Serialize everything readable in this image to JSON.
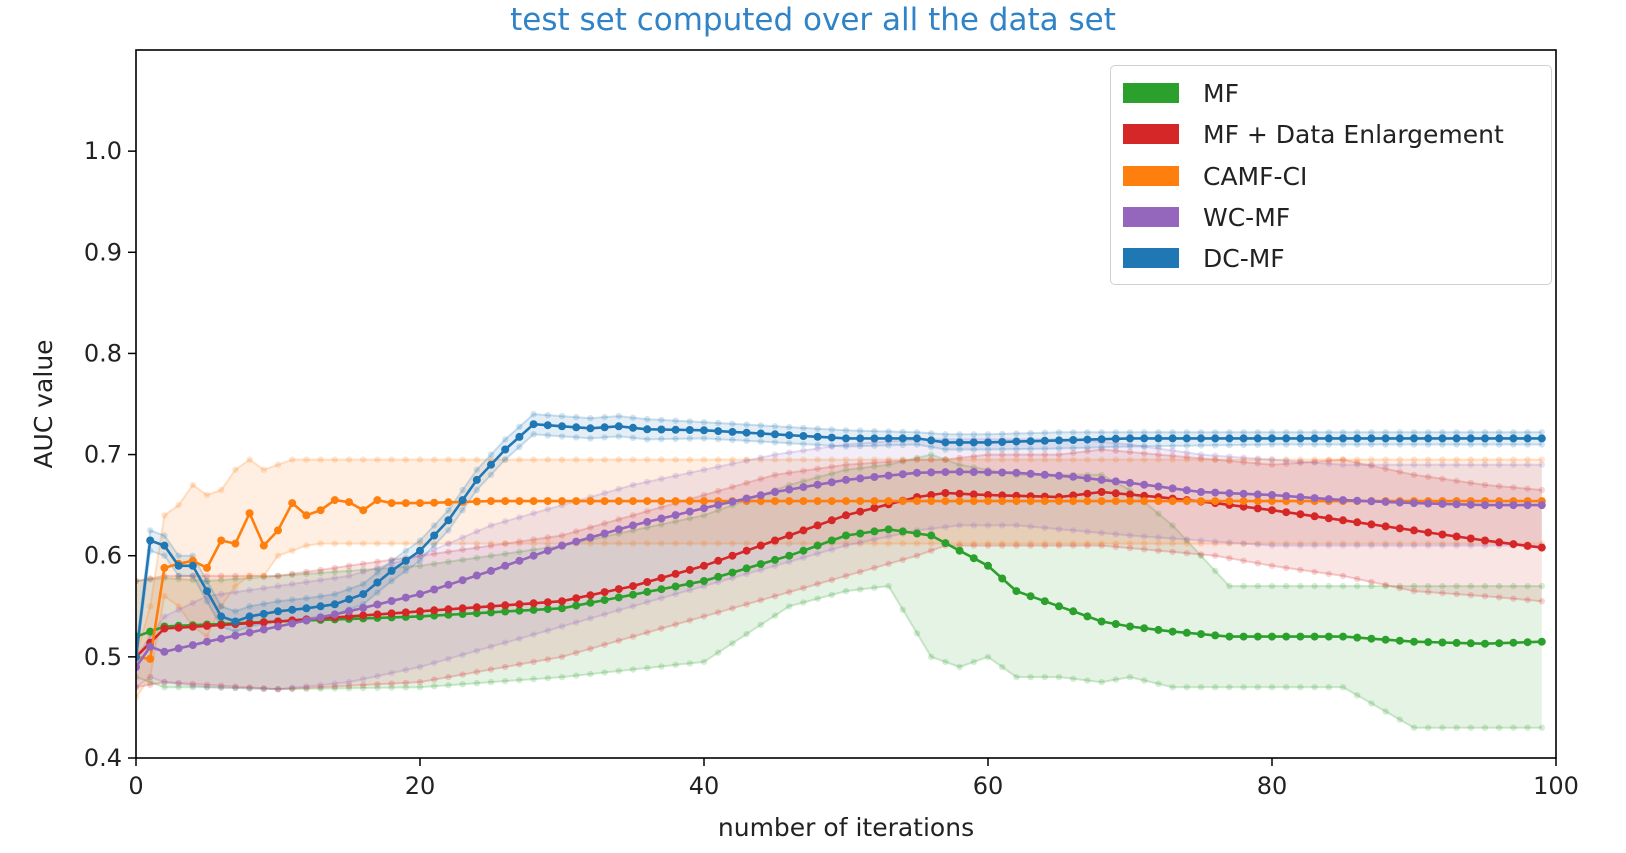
{
  "chart_data": {
    "type": "line",
    "title": "test set computed over all the data set",
    "xlabel": "number of iterations",
    "ylabel": "AUC value",
    "xlim": [
      0,
      100
    ],
    "ylim": [
      0.4,
      1.1
    ],
    "xticks": [
      0,
      20,
      40,
      60,
      80,
      100
    ],
    "yticks": [
      0.4,
      0.5,
      0.6,
      0.7,
      0.8,
      0.9,
      1.0
    ],
    "xtick_labels": [
      "0",
      "20",
      "40",
      "60",
      "80",
      "100"
    ],
    "ytick_labels": [
      "0.4",
      "0.5",
      "0.6",
      "0.7",
      "0.8",
      "0.9",
      "1.0"
    ],
    "legend_position": "top-right",
    "series": [
      {
        "name": "MF",
        "color": "#2ca02c",
        "x_keys": [
          0,
          2,
          5,
          10,
          20,
          30,
          40,
          46,
          50,
          53,
          56,
          58,
          60,
          62,
          65,
          68,
          70,
          73,
          77,
          80,
          85,
          90,
          95,
          99
        ],
        "mean": [
          0.52,
          0.53,
          0.532,
          0.535,
          0.54,
          0.548,
          0.575,
          0.6,
          0.62,
          0.626,
          0.62,
          0.605,
          0.59,
          0.565,
          0.55,
          0.535,
          0.53,
          0.525,
          0.52,
          0.52,
          0.52,
          0.515,
          0.513,
          0.515
        ],
        "upper": [
          0.575,
          0.578,
          0.575,
          0.58,
          0.59,
          0.61,
          0.64,
          0.67,
          0.685,
          0.69,
          0.7,
          0.69,
          0.685,
          0.68,
          0.68,
          0.68,
          0.665,
          0.63,
          0.57,
          0.57,
          0.57,
          0.57,
          0.57,
          0.57
        ],
        "lower": [
          0.48,
          0.47,
          0.47,
          0.468,
          0.47,
          0.48,
          0.495,
          0.55,
          0.565,
          0.57,
          0.5,
          0.49,
          0.5,
          0.48,
          0.48,
          0.475,
          0.48,
          0.47,
          0.47,
          0.47,
          0.47,
          0.43,
          0.43,
          0.43
        ]
      },
      {
        "name": "MF + Data Enlargement",
        "color": "#d62728",
        "x_keys": [
          0,
          2,
          10,
          20,
          30,
          35,
          40,
          45,
          50,
          55,
          57,
          60,
          65,
          68,
          72,
          76,
          80,
          85,
          90,
          95,
          99
        ],
        "mean": [
          0.5,
          0.528,
          0.535,
          0.545,
          0.555,
          0.57,
          0.59,
          0.615,
          0.64,
          0.658,
          0.662,
          0.66,
          0.658,
          0.663,
          0.658,
          0.652,
          0.645,
          0.635,
          0.625,
          0.615,
          0.608
        ],
        "upper": [
          0.575,
          0.58,
          0.58,
          0.6,
          0.62,
          0.64,
          0.66,
          0.68,
          0.69,
          0.695,
          0.695,
          0.7,
          0.7,
          0.705,
          0.7,
          0.695,
          0.69,
          0.695,
          0.68,
          0.67,
          0.665
        ],
        "lower": [
          0.47,
          0.475,
          0.468,
          0.475,
          0.5,
          0.52,
          0.54,
          0.56,
          0.58,
          0.6,
          0.61,
          0.61,
          0.61,
          0.61,
          0.605,
          0.6,
          0.59,
          0.58,
          0.565,
          0.56,
          0.555
        ]
      },
      {
        "name": "CAMF-CI",
        "color": "#ff7f0e",
        "x_keys": [
          0,
          1,
          2,
          3,
          4,
          5,
          6,
          7,
          8,
          9,
          10,
          11,
          12,
          13,
          14,
          15,
          16,
          17,
          18,
          20,
          25,
          30,
          40,
          50,
          60,
          70,
          80,
          90,
          99
        ],
        "mean": [
          0.5,
          0.498,
          0.588,
          0.592,
          0.595,
          0.588,
          0.615,
          0.612,
          0.642,
          0.61,
          0.625,
          0.652,
          0.64,
          0.645,
          0.655,
          0.653,
          0.645,
          0.655,
          0.652,
          0.652,
          0.654,
          0.654,
          0.654,
          0.654,
          0.654,
          0.654,
          0.654,
          0.654,
          0.654
        ],
        "upper": [
          0.5,
          0.55,
          0.64,
          0.65,
          0.67,
          0.66,
          0.665,
          0.685,
          0.695,
          0.685,
          0.69,
          0.695,
          0.695,
          0.695,
          0.695,
          0.695,
          0.695,
          0.695,
          0.695,
          0.695,
          0.695,
          0.695,
          0.695,
          0.695,
          0.695,
          0.695,
          0.695,
          0.695,
          0.695
        ],
        "lower": [
          0.46,
          0.48,
          0.56,
          0.55,
          0.53,
          0.52,
          0.55,
          0.57,
          0.58,
          0.58,
          0.6,
          0.605,
          0.61,
          0.612,
          0.612,
          0.612,
          0.612,
          0.612,
          0.612,
          0.612,
          0.612,
          0.612,
          0.612,
          0.612,
          0.612,
          0.612,
          0.612,
          0.612,
          0.612
        ]
      },
      {
        "name": "WC-MF",
        "color": "#9467bd",
        "x_keys": [
          0,
          1,
          2,
          5,
          10,
          15,
          20,
          25,
          30,
          35,
          40,
          45,
          50,
          55,
          58,
          62,
          66,
          70,
          75,
          80,
          85,
          90,
          95,
          99
        ],
        "mean": [
          0.49,
          0.51,
          0.505,
          0.515,
          0.53,
          0.545,
          0.562,
          0.585,
          0.61,
          0.63,
          0.647,
          0.663,
          0.675,
          0.682,
          0.683,
          0.682,
          0.678,
          0.672,
          0.663,
          0.66,
          0.655,
          0.652,
          0.65,
          0.65
        ],
        "upper": [
          0.5,
          0.52,
          0.54,
          0.56,
          0.57,
          0.58,
          0.6,
          0.63,
          0.65,
          0.67,
          0.685,
          0.7,
          0.71,
          0.715,
          0.715,
          0.715,
          0.715,
          0.71,
          0.7,
          0.695,
          0.69,
          0.69,
          0.69,
          0.69
        ],
        "lower": [
          0.47,
          0.48,
          0.475,
          0.47,
          0.468,
          0.475,
          0.49,
          0.51,
          0.53,
          0.55,
          0.57,
          0.59,
          0.61,
          0.625,
          0.63,
          0.63,
          0.625,
          0.62,
          0.615,
          0.61,
          0.61,
          0.61,
          0.61,
          0.61
        ]
      },
      {
        "name": "DC-MF",
        "color": "#1f77b4",
        "x_keys": [
          0,
          1,
          2,
          3,
          4,
          5,
          6,
          7,
          8,
          10,
          12,
          14,
          16,
          18,
          20,
          22,
          24,
          26,
          28,
          30,
          32,
          34,
          36,
          40,
          45,
          50,
          55,
          57,
          60,
          65,
          70,
          80,
          90,
          99
        ],
        "mean": [
          0.5,
          0.615,
          0.61,
          0.59,
          0.59,
          0.565,
          0.54,
          0.535,
          0.54,
          0.545,
          0.548,
          0.552,
          0.562,
          0.585,
          0.605,
          0.635,
          0.675,
          0.705,
          0.73,
          0.728,
          0.726,
          0.728,
          0.725,
          0.724,
          0.72,
          0.716,
          0.716,
          0.712,
          0.712,
          0.714,
          0.716,
          0.716,
          0.716,
          0.716
        ],
        "upper": [
          0.505,
          0.625,
          0.62,
          0.6,
          0.6,
          0.575,
          0.55,
          0.545,
          0.55,
          0.555,
          0.558,
          0.562,
          0.572,
          0.595,
          0.615,
          0.645,
          0.685,
          0.715,
          0.74,
          0.738,
          0.736,
          0.738,
          0.735,
          0.732,
          0.728,
          0.724,
          0.722,
          0.72,
          0.72,
          0.722,
          0.722,
          0.722,
          0.722,
          0.722
        ],
        "lower": [
          0.495,
          0.605,
          0.6,
          0.58,
          0.58,
          0.555,
          0.53,
          0.525,
          0.53,
          0.535,
          0.538,
          0.542,
          0.552,
          0.575,
          0.595,
          0.625,
          0.665,
          0.695,
          0.72,
          0.718,
          0.716,
          0.718,
          0.715,
          0.716,
          0.712,
          0.708,
          0.71,
          0.705,
          0.705,
          0.706,
          0.708,
          0.71,
          0.71,
          0.71
        ]
      }
    ]
  },
  "legend": {
    "items": [
      {
        "label": "MF",
        "color": "#2ca02c"
      },
      {
        "label": "MF + Data Enlargement",
        "color": "#d62728"
      },
      {
        "label": "CAMF-CI",
        "color": "#ff7f0e"
      },
      {
        "label": "WC-MF",
        "color": "#9467bd"
      },
      {
        "label": "DC-MF",
        "color": "#1f77b4"
      }
    ]
  }
}
